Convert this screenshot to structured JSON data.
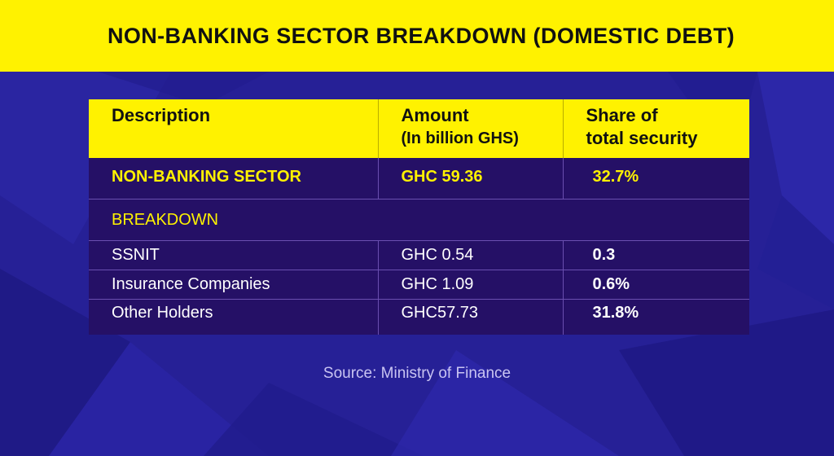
{
  "title": "NON-BANKING SECTOR BREAKDOWN (DOMESTIC DEBT)",
  "colors": {
    "banner": "#fff200",
    "background": "#262096",
    "table_body": "#251066",
    "highlight_text": "#fff200"
  },
  "table": {
    "headers": {
      "description": "Description",
      "amount": "Amount",
      "amount_unit": "(In billion GHS)",
      "share_line1": "Share of",
      "share_line2": "total security"
    },
    "sector": {
      "description": "NON-BANKING SECTOR",
      "amount": "GHC 59.36",
      "share": "32.7%"
    },
    "breakdown_label": "BREAKDOWN",
    "rows": [
      {
        "description": "SSNIT",
        "amount": "GHC 0.54",
        "share": "0.3"
      },
      {
        "description": "Insurance Companies",
        "amount": "GHC 1.09",
        "share": "0.6%"
      },
      {
        "description": "Other Holders",
        "amount": "GHC57.73",
        "share": "31.8%"
      }
    ]
  },
  "source": "Source: Ministry of Finance"
}
